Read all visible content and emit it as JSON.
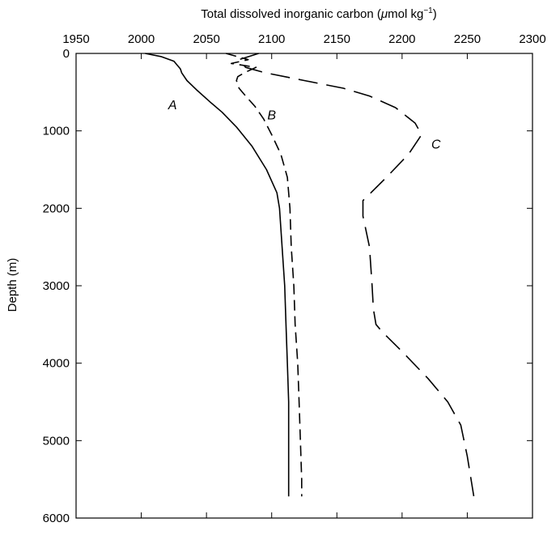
{
  "chart_data": {
    "type": "line",
    "title": "",
    "xlabel": "Total dissolved inorganic carbon (μmol kg⁻¹)",
    "xlabel_parts": {
      "main": "Total dissolved inorganic carbon (",
      "mu": "μ",
      "unit": "mol kg",
      "sup": "−1",
      "close": ")"
    },
    "ylabel": "Depth (m)",
    "x_axis_position": "top",
    "y_inverted": true,
    "xlim": [
      1950,
      2300
    ],
    "ylim": [
      0,
      6000
    ],
    "x_ticks": [
      "1950",
      "2000",
      "2050",
      "2100",
      "2150",
      "2200",
      "2250",
      "2300"
    ],
    "y_ticks": [
      "0",
      "1000",
      "2000",
      "3000",
      "4000",
      "5000",
      "6000"
    ],
    "grid": false,
    "series": [
      {
        "name": "A",
        "style": "solid",
        "points": [
          [
            2003,
            0
          ],
          [
            2015,
            40
          ],
          [
            2025,
            100
          ],
          [
            2030,
            200
          ],
          [
            2031,
            250
          ],
          [
            2035,
            350
          ],
          [
            2043,
            480
          ],
          [
            2053,
            630
          ],
          [
            2062,
            760
          ],
          [
            2073,
            950
          ],
          [
            2085,
            1200
          ],
          [
            2096,
            1500
          ],
          [
            2104,
            1800
          ],
          [
            2106,
            2000
          ],
          [
            2108,
            2500
          ],
          [
            2110,
            3000
          ],
          [
            2111,
            3500
          ],
          [
            2112,
            4000
          ],
          [
            2113,
            4500
          ],
          [
            2113,
            5000
          ],
          [
            2113,
            5500
          ],
          [
            2113,
            5720
          ]
        ]
      },
      {
        "name": "B",
        "style": "dashed",
        "points": [
          [
            2065,
            0
          ],
          [
            2082,
            80
          ],
          [
            2069,
            130
          ],
          [
            2088,
            180
          ],
          [
            2079,
            250
          ],
          [
            2074,
            300
          ],
          [
            2073,
            350
          ],
          [
            2075,
            450
          ],
          [
            2080,
            550
          ],
          [
            2087,
            680
          ],
          [
            2094,
            850
          ],
          [
            2100,
            1050
          ],
          [
            2107,
            1300
          ],
          [
            2112,
            1600
          ],
          [
            2114,
            2000
          ],
          [
            2115,
            2500
          ],
          [
            2117,
            3000
          ],
          [
            2118,
            3500
          ],
          [
            2120,
            4000
          ],
          [
            2121,
            4500
          ],
          [
            2122,
            5000
          ],
          [
            2123,
            5500
          ],
          [
            2123,
            5720
          ]
        ]
      },
      {
        "name": "C",
        "style": "long-dashed",
        "points": [
          [
            2090,
            0
          ],
          [
            2075,
            80
          ],
          [
            2080,
            180
          ],
          [
            2095,
            250
          ],
          [
            2125,
            350
          ],
          [
            2155,
            450
          ],
          [
            2175,
            550
          ],
          [
            2195,
            700
          ],
          [
            2210,
            900
          ],
          [
            2215,
            1050
          ],
          [
            2205,
            1300
          ],
          [
            2188,
            1600
          ],
          [
            2170,
            1900
          ],
          [
            2170,
            2100
          ],
          [
            2175,
            2500
          ],
          [
            2177,
            3000
          ],
          [
            2178,
            3300
          ],
          [
            2180,
            3500
          ],
          [
            2185,
            3600
          ],
          [
            2200,
            3850
          ],
          [
            2220,
            4200
          ],
          [
            2235,
            4500
          ],
          [
            2245,
            4800
          ],
          [
            2250,
            5200
          ],
          [
            2255,
            5720
          ]
        ]
      }
    ],
    "annotations": [
      {
        "text": "A",
        "x": 2024,
        "y": 720
      },
      {
        "text": "B",
        "x": 2100,
        "y": 850
      },
      {
        "text": "C",
        "x": 2226,
        "y": 1230
      }
    ]
  }
}
